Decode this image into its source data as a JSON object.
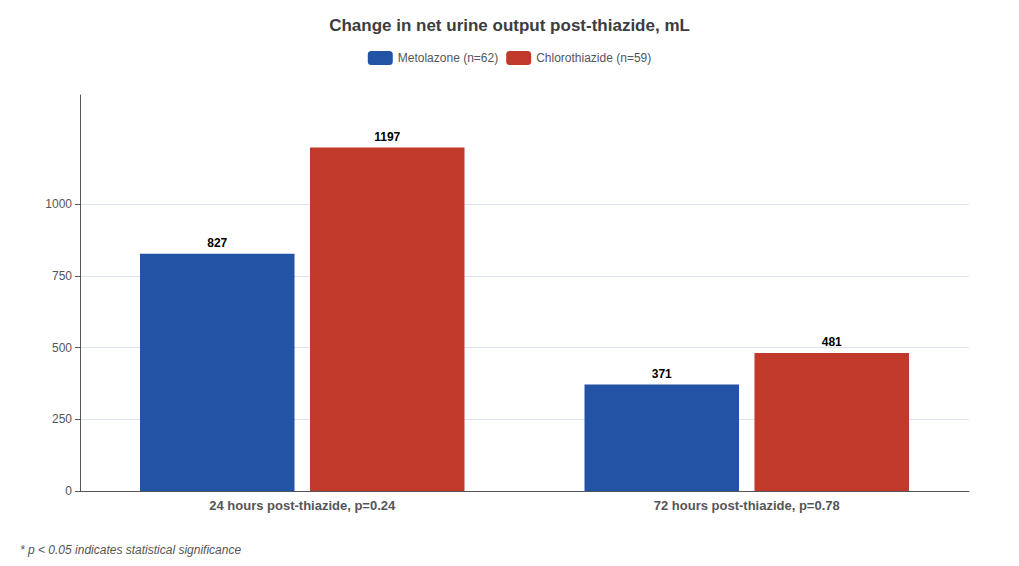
{
  "chart_data": {
    "type": "bar",
    "title": "Change in net urine output post-thiazide, mL",
    "categories": [
      "24 hours post-thiazide, p=0.24",
      "72 hours post-thiazide, p=0.78"
    ],
    "series": [
      {
        "name": "Metolazone (n=62)",
        "color": "#2353a4",
        "values": [
          827,
          371
        ]
      },
      {
        "name": "Chlorothiazide (n=59)",
        "color": "#c0392b",
        "values": [
          1197,
          481
        ]
      }
    ],
    "ylim": [
      0,
      1380
    ],
    "yticks": [
      0,
      250,
      500,
      750,
      1000
    ],
    "grid": true,
    "legend": "top",
    "data_labels": true,
    "annotations": [
      "* p < 0.05 indicates statistical significance"
    ]
  }
}
